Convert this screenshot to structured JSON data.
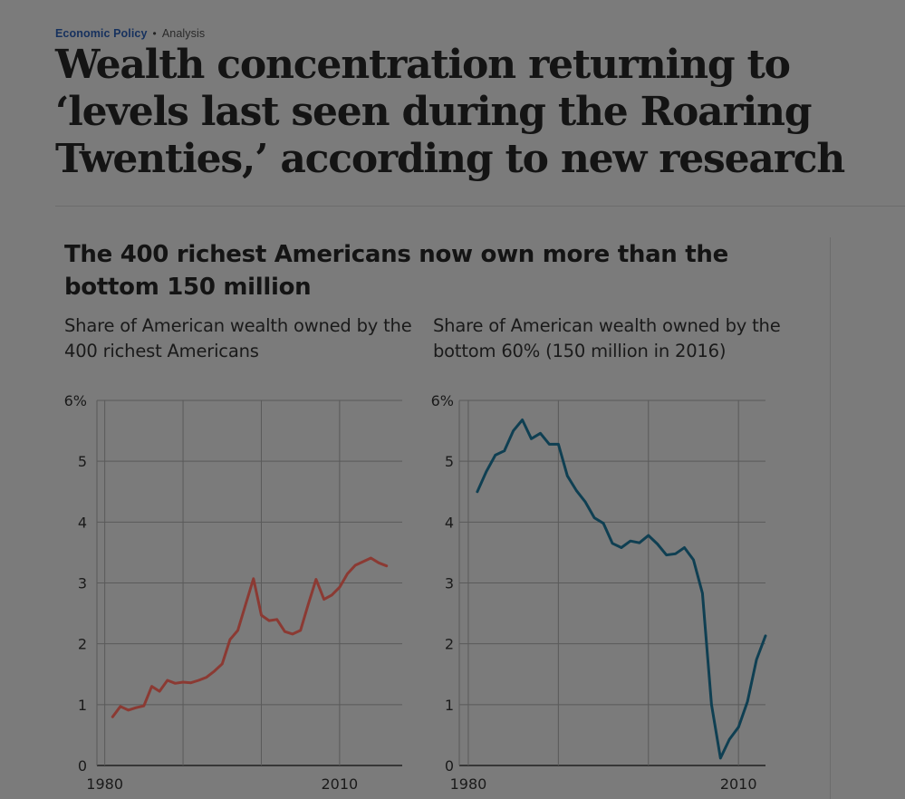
{
  "article": {
    "section": "Economic Policy",
    "separator": "•",
    "label": "Analysis",
    "headline": "Wealth concentration returning to ‘levels last seen during the Roaring Twenties,’ according to new research"
  },
  "figure": {
    "title": "The 400 richest Americans now own more than the bottom 150 million"
  },
  "chart_data": [
    {
      "type": "line",
      "title": "",
      "subtitle": "Share of American wealth owned by the 400 richest Americans",
      "xlabel": "",
      "ylabel": "",
      "xlim": [
        1979,
        2018
      ],
      "ylim": [
        0,
        6
      ],
      "x_ticks": [
        1980,
        1990,
        2000,
        2010
      ],
      "x_tick_labels": [
        "1980",
        "",
        "",
        "2010"
      ],
      "y_ticks": [
        0,
        1,
        2,
        3,
        4,
        5,
        6
      ],
      "y_tick_labels": [
        "0",
        "1",
        "2",
        "3",
        "4",
        "5",
        "6%"
      ],
      "grid": true,
      "series": [
        {
          "color": "#8b3a33",
          "x": [
            1981,
            1982,
            1983,
            1984,
            1985,
            1986,
            1987,
            1988,
            1989,
            1990,
            1991,
            1992,
            1993,
            1994,
            1995,
            1996,
            1997,
            1998,
            1999,
            2000,
            2001,
            2002,
            2003,
            2004,
            2005,
            2006,
            2007,
            2008,
            2009,
            2010,
            2011,
            2012,
            2013,
            2014,
            2015,
            2016
          ],
          "y": [
            0.8,
            0.97,
            0.91,
            0.95,
            0.98,
            1.3,
            1.22,
            1.4,
            1.35,
            1.37,
            1.36,
            1.4,
            1.45,
            1.55,
            1.67,
            2.07,
            2.22,
            2.65,
            3.07,
            2.47,
            2.38,
            2.4,
            2.2,
            2.16,
            2.22,
            2.65,
            3.06,
            2.73,
            2.8,
            2.93,
            3.15,
            3.29,
            3.35,
            3.41,
            3.33,
            3.28
          ]
        }
      ]
    },
    {
      "type": "line",
      "title": "",
      "subtitle": "Share of American wealth owned by the bottom 60% (150 million in 2016)",
      "xlabel": "",
      "ylabel": "",
      "xlim": [
        1979,
        2013
      ],
      "ylim": [
        0,
        6
      ],
      "x_ticks": [
        1980,
        1990,
        2000,
        2010
      ],
      "x_tick_labels": [
        "1980",
        "",
        "",
        "2010"
      ],
      "y_ticks": [
        0,
        1,
        2,
        3,
        4,
        5,
        6
      ],
      "y_tick_labels": [
        "0",
        "1",
        "2",
        "3",
        "4",
        "5",
        "6%"
      ],
      "grid": true,
      "series": [
        {
          "color": "#0f3f52",
          "x": [
            1981,
            1982,
            1983,
            1984,
            1985,
            1986,
            1987,
            1988,
            1989,
            1990,
            1991,
            1992,
            1993,
            1994,
            1995,
            1996,
            1997,
            1998,
            1999,
            2000,
            2001,
            2002,
            2003,
            2004,
            2005,
            2006,
            2007,
            2008,
            2009,
            2010,
            2011,
            2012,
            2013,
            2014,
            2015,
            2016
          ],
          "y": [
            4.5,
            4.83,
            5.1,
            5.17,
            5.5,
            5.68,
            5.37,
            5.46,
            5.28,
            5.28,
            4.76,
            4.52,
            4.33,
            4.07,
            3.98,
            3.65,
            3.58,
            3.69,
            3.66,
            3.78,
            3.64,
            3.46,
            3.48,
            3.58,
            3.38,
            2.83,
            1.0,
            0.12,
            0.43,
            0.63,
            1.05,
            1.74,
            2.13,
            null,
            null,
            null
          ]
        }
      ]
    }
  ]
}
